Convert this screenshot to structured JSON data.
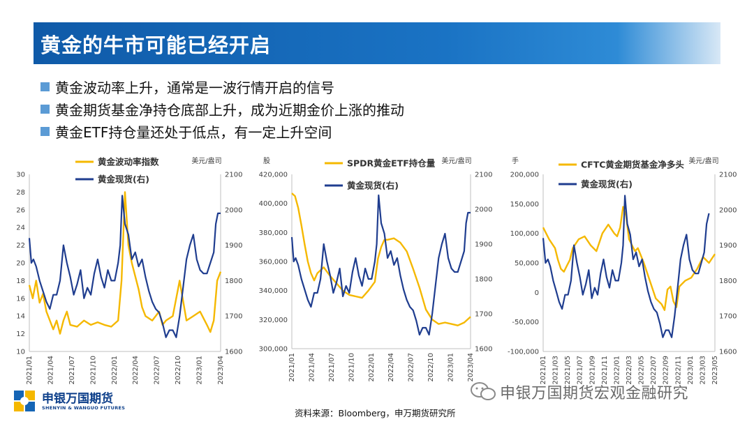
{
  "slide": {
    "title": "黄金的牛市可能已经开启",
    "bullets": [
      "黄金波动率上升，通常是一波行情开启的信号",
      "黄金期货基金净持仓底部上升，成为近期金价上涨的推动",
      "黄金ETF持仓量还处于低点，有一定上升空间"
    ],
    "source": "资料来源：Bloomberg，申万期货研究所",
    "logo": {
      "cn": "申银万国期货",
      "en": "SHENYIN & WANGUO FUTURES"
    },
    "watermark": "申银万国期货宏观金融研究"
  },
  "colors": {
    "gold": "#f5b800",
    "navy": "#1f3d8f",
    "title_bg": "#1565b5",
    "bullet": "#5b9bd5"
  },
  "chart_data": [
    {
      "type": "line",
      "right_unit": "美元/盎司",
      "legend": [
        "黄金波动率指数",
        "黄金现货(右)"
      ],
      "x_ticks": [
        "2021/01",
        "2021/04",
        "2021/07",
        "2021/10",
        "2022/01",
        "2022/04",
        "2022/07",
        "2022/10",
        "2023/01",
        "2023/04"
      ],
      "x_range": [
        "2021/01",
        "2023/04"
      ],
      "ylim_left": [
        10,
        30
      ],
      "yticks_left": [
        "10",
        "12",
        "14",
        "16",
        "18",
        "20",
        "22",
        "24",
        "26",
        "28",
        "30"
      ],
      "ylim_right": [
        1600,
        2100
      ],
      "yticks_right": [
        "1600",
        "1700",
        "1800",
        "1900",
        "2000",
        "2100"
      ],
      "series": [
        {
          "name": "黄金波动率指数",
          "axis": "left",
          "x": [
            0,
            0.5,
            1,
            1.5,
            2,
            2.5,
            3,
            3.5,
            4,
            4.5,
            5,
            5.5,
            6,
            7,
            8,
            9,
            10,
            11,
            12,
            13,
            13.5,
            14,
            14.5,
            15,
            16,
            16.5,
            17,
            18,
            19,
            19.5,
            20,
            21,
            22,
            23,
            24,
            25,
            26,
            26.5,
            26.8,
            27,
            27.5,
            28
          ],
          "values": [
            17.5,
            16,
            18,
            15.5,
            16.5,
            14.5,
            13.5,
            12.5,
            13.5,
            12,
            13.5,
            14.5,
            13,
            12.8,
            13.5,
            13,
            13.3,
            13,
            12.8,
            13.5,
            18,
            28,
            22,
            20,
            17,
            15,
            14,
            13.5,
            14.5,
            13,
            13.5,
            14,
            18,
            13.5,
            14,
            14.5,
            13,
            12.2,
            13,
            13.5,
            18,
            19
          ]
        },
        {
          "name": "黄金现货(右)",
          "axis": "right",
          "x": [
            0,
            0.3,
            0.6,
            1,
            1.5,
            2,
            2.5,
            3,
            3.5,
            4,
            4.5,
            5,
            5.5,
            6,
            6.5,
            7,
            7.5,
            8,
            8.5,
            9,
            9.5,
            10,
            10.5,
            11,
            11.5,
            12,
            12.5,
            13,
            13.3,
            13.6,
            14,
            14.5,
            15,
            15.5,
            16,
            16.5,
            17,
            17.5,
            18,
            18.5,
            19,
            19.5,
            20,
            20.5,
            21,
            21.5,
            22,
            22.5,
            23,
            23.5,
            24,
            24.5,
            25,
            25.5,
            26,
            26.5,
            27,
            27.3,
            27.6,
            28
          ],
          "values": [
            1920,
            1850,
            1860,
            1840,
            1800,
            1770,
            1740,
            1720,
            1760,
            1760,
            1800,
            1900,
            1850,
            1810,
            1760,
            1790,
            1830,
            1750,
            1780,
            1760,
            1820,
            1860,
            1810,
            1780,
            1830,
            1800,
            1800,
            1850,
            1900,
            2040,
            1960,
            1930,
            1860,
            1880,
            1840,
            1860,
            1810,
            1770,
            1740,
            1720,
            1710,
            1680,
            1640,
            1660,
            1660,
            1640,
            1700,
            1780,
            1860,
            1900,
            1930,
            1860,
            1830,
            1820,
            1820,
            1850,
            1880,
            1960,
            1990,
            1990
          ]
        }
      ]
    },
    {
      "type": "line",
      "left_unit": "股",
      "right_unit": "美元/盎司",
      "legend": [
        "SPDR黄金ETF持仓量",
        "黄金现货(右)"
      ],
      "x_ticks": [
        "2021/01",
        "2021/04",
        "2021/07",
        "2021/10",
        "2022/01",
        "2022/04",
        "2022/07",
        "2022/10",
        "2023/01",
        "2023/04"
      ],
      "x_range": [
        "2021/01",
        "2023/04"
      ],
      "ylim_left": [
        300000,
        420000
      ],
      "yticks_left": [
        "300,000",
        "320,000",
        "340,000",
        "360,000",
        "380,000",
        "400,000",
        "420,000"
      ],
      "ylim_right": [
        1600,
        2100
      ],
      "yticks_right": [
        "1600",
        "1700",
        "1800",
        "1900",
        "2000",
        "2100"
      ],
      "series": [
        {
          "name": "SPDR黄金ETF持仓量",
          "axis": "left",
          "x": [
            0,
            0.5,
            1,
            1.5,
            2,
            2.5,
            3,
            3.5,
            4,
            5,
            6,
            7,
            8,
            9,
            10,
            11,
            12,
            13,
            13.5,
            14,
            14.5,
            15,
            16,
            17,
            18,
            19,
            20,
            21,
            22,
            23,
            24,
            25,
            26,
            27,
            28
          ],
          "values": [
            407000,
            405000,
            397000,
            385000,
            372000,
            360000,
            352000,
            347000,
            352000,
            356000,
            350000,
            345000,
            340000,
            337000,
            336000,
            335000,
            340000,
            346000,
            362000,
            370000,
            375000,
            375000,
            376000,
            373000,
            367000,
            355000,
            342000,
            327000,
            320000,
            317000,
            318000,
            317000,
            316000,
            318000,
            322000
          ]
        },
        {
          "name": "黄金现货(右)",
          "axis": "right",
          "x": [
            0,
            0.3,
            0.6,
            1,
            1.5,
            2,
            2.5,
            3,
            3.5,
            4,
            4.5,
            5,
            5.5,
            6,
            6.5,
            7,
            7.5,
            8,
            8.5,
            9,
            9.5,
            10,
            10.5,
            11,
            11.5,
            12,
            12.5,
            13,
            13.3,
            13.6,
            14,
            14.5,
            15,
            15.5,
            16,
            16.5,
            17,
            17.5,
            18,
            18.5,
            19,
            19.5,
            20,
            20.5,
            21,
            21.5,
            22,
            22.5,
            23,
            23.5,
            24,
            24.5,
            25,
            25.5,
            26,
            26.5,
            27,
            27.3,
            27.6,
            28
          ],
          "values": [
            1920,
            1850,
            1860,
            1840,
            1800,
            1770,
            1740,
            1720,
            1760,
            1760,
            1800,
            1900,
            1850,
            1810,
            1760,
            1790,
            1830,
            1750,
            1780,
            1760,
            1820,
            1860,
            1810,
            1780,
            1830,
            1800,
            1800,
            1850,
            1900,
            2040,
            1960,
            1930,
            1860,
            1880,
            1840,
            1860,
            1810,
            1770,
            1740,
            1720,
            1710,
            1680,
            1640,
            1660,
            1660,
            1640,
            1700,
            1780,
            1860,
            1900,
            1930,
            1860,
            1830,
            1820,
            1820,
            1850,
            1880,
            1960,
            1990,
            1990
          ]
        }
      ]
    },
    {
      "type": "line",
      "left_unit": "手",
      "right_unit": "美元/盎司",
      "legend": [
        "CFTC黄金期货基金净多头",
        "黄金现货(右)"
      ],
      "x_ticks": [
        "2021/01",
        "2021/03",
        "2021/05",
        "2021/07",
        "2021/09",
        "2021/11",
        "2022/01",
        "2022/03",
        "2022/05",
        "2022/07",
        "2022/09",
        "2022/11",
        "2023/01",
        "2023/03",
        "2023/05"
      ],
      "x_range": [
        "2021/01",
        "2023/05"
      ],
      "ylim_left": [
        -100000,
        200000
      ],
      "yticks_left": [
        "-100,000",
        "-50,000",
        "0",
        "50,000",
        "100,000",
        "150,000",
        "200,000"
      ],
      "ylim_right": [
        1600,
        2100
      ],
      "yticks_right": [
        "1600",
        "1700",
        "1800",
        "1900",
        "2000",
        "2100"
      ],
      "series": [
        {
          "name": "CFTC黄金期货基金净多头",
          "axis": "left",
          "x": [
            0,
            1,
            2,
            2.5,
            3,
            3.5,
            4,
            4.5,
            5,
            6,
            7,
            8,
            9,
            10,
            11,
            12,
            12.5,
            13,
            13.5,
            14,
            14.5,
            15,
            15.5,
            16,
            17,
            18,
            19,
            20,
            20.5,
            21,
            21.5,
            22,
            22.5,
            23,
            24,
            25,
            26,
            27,
            28,
            29
          ],
          "values": [
            110000,
            90000,
            75000,
            55000,
            40000,
            35000,
            45000,
            55000,
            75000,
            90000,
            95000,
            80000,
            70000,
            100000,
            115000,
            100000,
            95000,
            110000,
            145000,
            130000,
            90000,
            80000,
            70000,
            75000,
            50000,
            20000,
            -10000,
            -20000,
            -30000,
            5000,
            10000,
            -15000,
            -25000,
            10000,
            20000,
            25000,
            40000,
            60000,
            50000,
            65000
          ]
        },
        {
          "name": "黄金现货(右)",
          "axis": "right",
          "x": [
            0,
            0.4,
            0.8,
            1.2,
            1.7,
            2.2,
            2.7,
            3.2,
            3.7,
            4.2,
            4.7,
            5.2,
            5.7,
            6.2,
            6.7,
            7.2,
            7.7,
            8.2,
            8.7,
            9.2,
            9.7,
            10.2,
            10.7,
            11.2,
            11.7,
            12.2,
            12.7,
            13.2,
            13.5,
            13.8,
            14.2,
            14.7,
            15.2,
            15.7,
            16.2,
            16.7,
            17.2,
            17.7,
            18.2,
            18.7,
            19.2,
            19.7,
            20.2,
            20.7,
            21.2,
            21.7,
            22.2,
            22.7,
            23.2,
            23.7,
            24.2,
            24.7,
            25.2,
            25.7,
            26.2,
            26.7,
            27.2,
            27.6,
            28
          ],
          "values": [
            1920,
            1850,
            1860,
            1840,
            1800,
            1770,
            1740,
            1720,
            1760,
            1760,
            1800,
            1900,
            1850,
            1810,
            1760,
            1790,
            1830,
            1750,
            1780,
            1760,
            1820,
            1860,
            1810,
            1780,
            1830,
            1800,
            1800,
            1850,
            1900,
            2040,
            1960,
            1930,
            1860,
            1880,
            1840,
            1860,
            1810,
            1770,
            1740,
            1720,
            1710,
            1680,
            1640,
            1660,
            1660,
            1640,
            1700,
            1780,
            1860,
            1900,
            1930,
            1860,
            1830,
            1820,
            1820,
            1850,
            1880,
            1960,
            1990
          ]
        }
      ]
    }
  ]
}
